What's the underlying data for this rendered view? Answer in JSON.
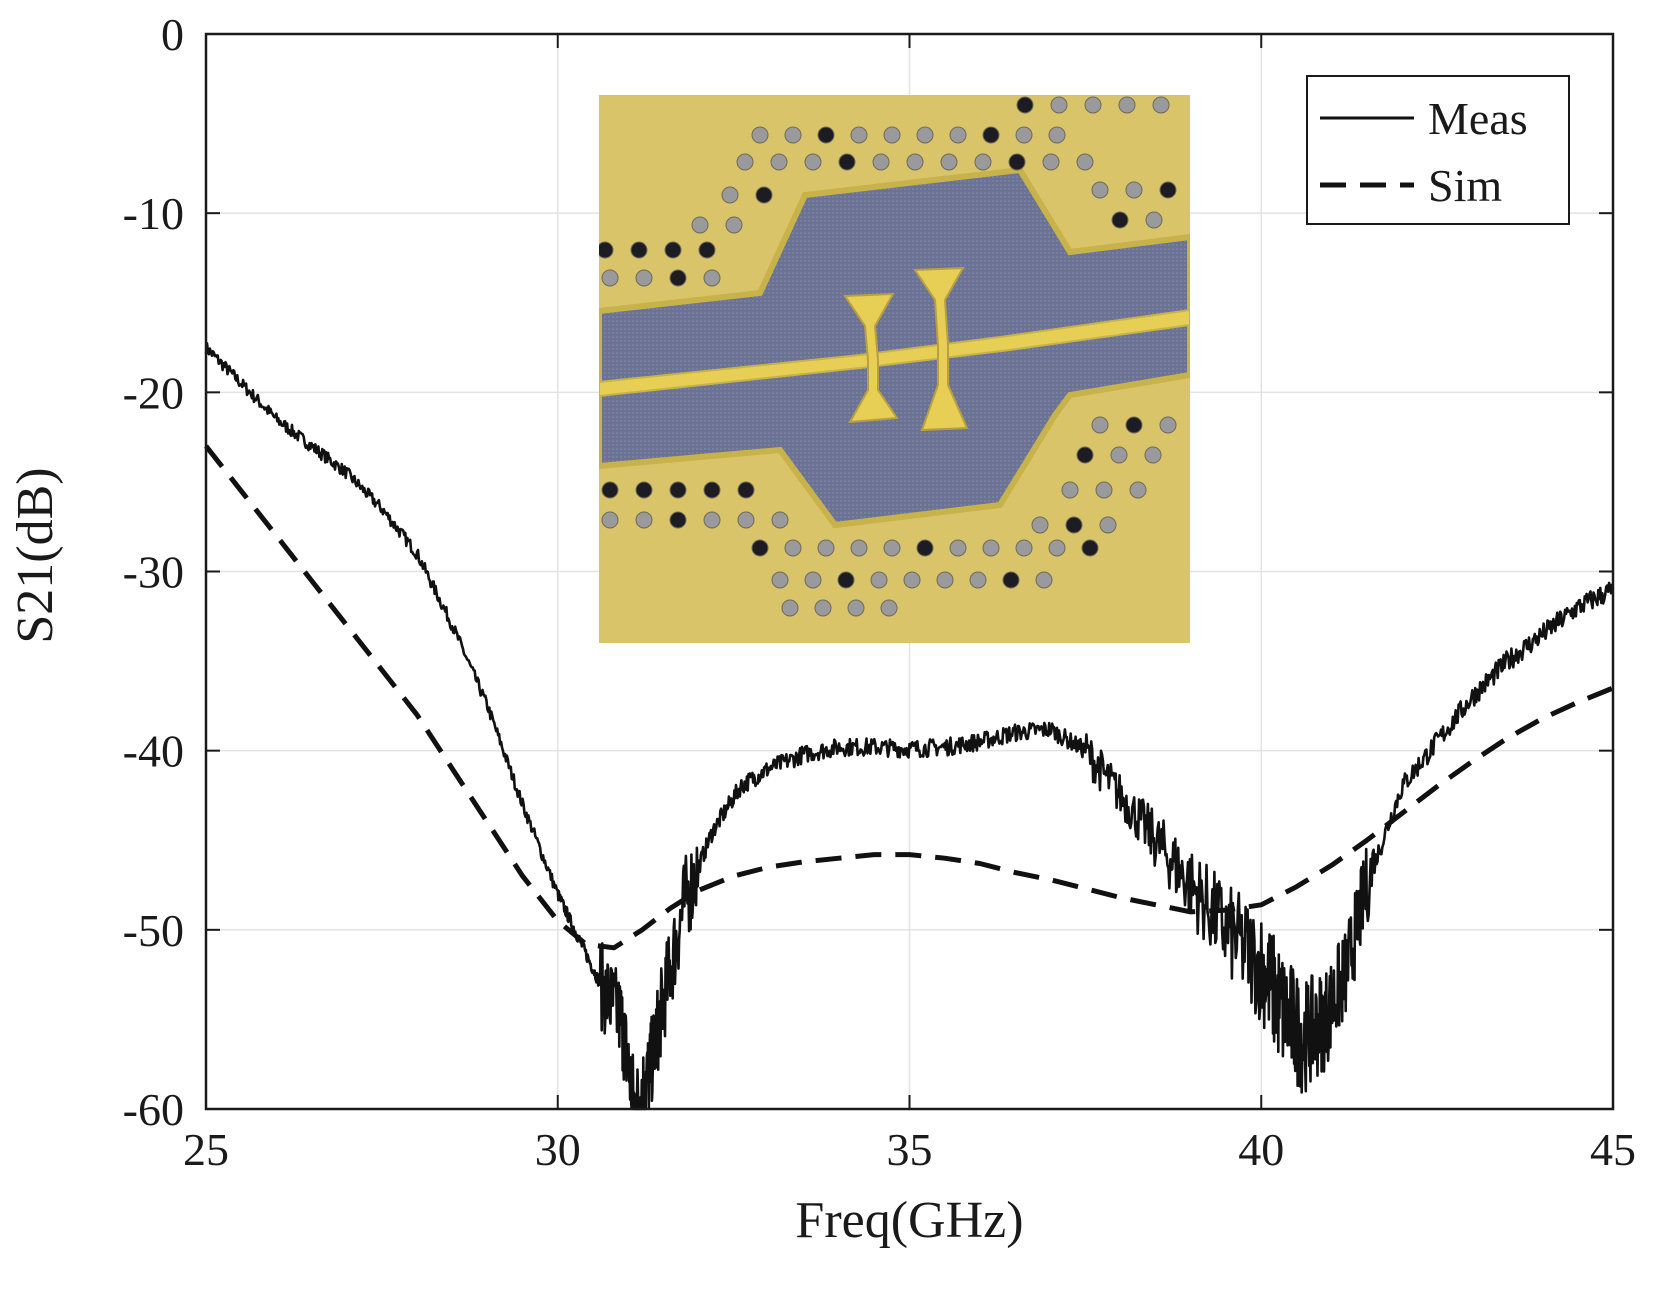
{
  "chart_data": {
    "type": "line",
    "xlabel": "Freq(GHz)",
    "ylabel": "S21(dB)",
    "xlim": [
      25,
      45
    ],
    "ylim": [
      -60,
      0
    ],
    "xticks": [
      25,
      30,
      35,
      40,
      45
    ],
    "yticks": [
      0,
      -10,
      -20,
      -30,
      -40,
      -50,
      -60
    ],
    "xtick_labels": [
      "25",
      "30",
      "35",
      "40",
      "45"
    ],
    "ytick_labels": [
      "0",
      "-10",
      "-20",
      "-30",
      "-40",
      "-50",
      "-60"
    ],
    "grid": true,
    "legend_position": "top-right",
    "series": [
      {
        "name": "Meas",
        "style": "solid",
        "noisy": true,
        "x": [
          25.0,
          25.5,
          26.0,
          26.5,
          27.0,
          27.5,
          28.0,
          28.5,
          29.0,
          29.5,
          30.0,
          30.3,
          30.6,
          30.9,
          31.1,
          31.3,
          31.5,
          31.8,
          32.2,
          32.6,
          33.0,
          33.5,
          34.0,
          34.5,
          35.0,
          35.5,
          36.0,
          36.5,
          37.0,
          37.5,
          38.0,
          38.5,
          39.0,
          39.5,
          40.0,
          40.3,
          40.6,
          40.9,
          41.2,
          41.5,
          42.0,
          42.5,
          43.0,
          43.5,
          44.0,
          44.5,
          45.0
        ],
        "y": [
          -17.5,
          -19.5,
          -21.5,
          -23.0,
          -24.5,
          -26.5,
          -29.0,
          -33.0,
          -37.5,
          -43.0,
          -48.0,
          -50.5,
          -53.0,
          -55.0,
          -60.0,
          -58.0,
          -54.0,
          -48.5,
          -44.5,
          -42.0,
          -41.0,
          -40.2,
          -39.8,
          -39.8,
          -39.9,
          -39.8,
          -39.5,
          -39.0,
          -38.8,
          -40.0,
          -42.5,
          -45.0,
          -47.5,
          -50.0,
          -52.0,
          -54.5,
          -56.0,
          -55.0,
          -52.5,
          -47.5,
          -42.0,
          -39.5,
          -37.0,
          -35.0,
          -33.5,
          -32.0,
          -31.0
        ]
      },
      {
        "name": "Sim",
        "style": "dashed",
        "noisy": false,
        "x": [
          25.0,
          25.5,
          26.0,
          26.5,
          27.0,
          27.5,
          28.0,
          28.5,
          29.0,
          29.5,
          30.0,
          30.4,
          30.8,
          31.2,
          31.6,
          32.0,
          32.5,
          33.0,
          33.5,
          34.0,
          34.5,
          35.0,
          35.5,
          36.0,
          36.5,
          37.0,
          37.5,
          38.0,
          38.5,
          39.0,
          39.5,
          40.0,
          40.5,
          41.0,
          41.5,
          42.0,
          42.5,
          43.0,
          43.5,
          44.0,
          44.5,
          45.0
        ],
        "y": [
          -23.0,
          -25.5,
          -28.0,
          -30.5,
          -33.0,
          -35.5,
          -38.0,
          -41.0,
          -44.0,
          -47.0,
          -49.5,
          -50.8,
          -51.0,
          -50.0,
          -48.8,
          -47.8,
          -47.0,
          -46.5,
          -46.2,
          -46.0,
          -45.8,
          -45.8,
          -46.0,
          -46.3,
          -46.8,
          -47.2,
          -47.7,
          -48.2,
          -48.6,
          -49.0,
          -48.9,
          -48.6,
          -47.6,
          -46.4,
          -45.0,
          -43.5,
          -42.0,
          -40.6,
          -39.3,
          -38.2,
          -37.3,
          -36.5
        ]
      }
    ]
  },
  "legend": {
    "entries": [
      "Meas",
      "Sim"
    ]
  },
  "inset_photo": {
    "description_hidden": true,
    "colors": {
      "substrate": "#d9c46a",
      "metal": "#6b7294",
      "line": "#e6cf54",
      "via_light": "#9a9a9c",
      "via_dark": "#1c1c22"
    }
  }
}
